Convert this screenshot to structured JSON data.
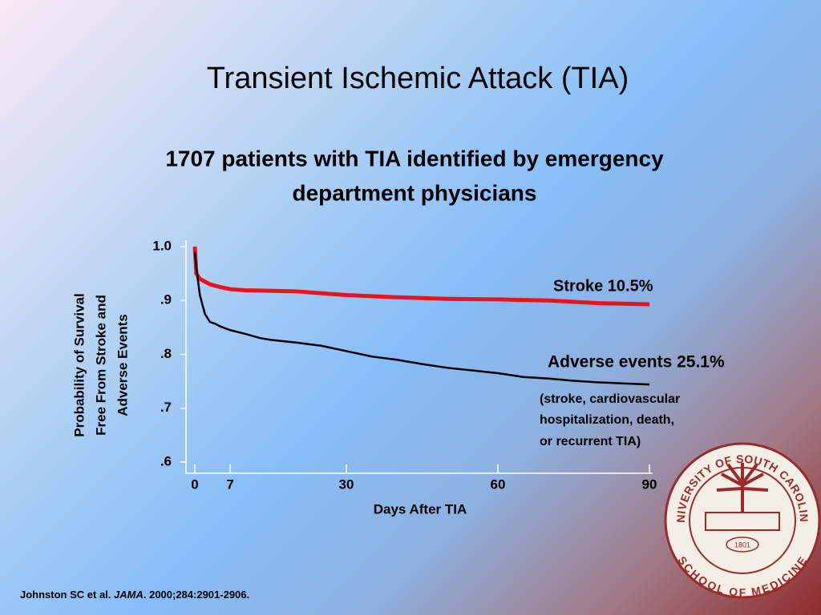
{
  "title": "Transient Ischemic Attack (TIA)",
  "chart_data": {
    "type": "line",
    "subtitle_lines": [
      "1707 patients with TIA identified by emergency",
      "department physicians"
    ],
    "ylabel_lines": [
      "Probability of Survival",
      "Free From Stroke and",
      "Adverse Events"
    ],
    "xlabel": "Days After TIA",
    "xlim": [
      0,
      90
    ],
    "xticks": [
      0,
      7,
      30,
      60,
      90
    ],
    "ylim": [
      0.6,
      1.0
    ],
    "yticks": [
      {
        "value": 1.0,
        "label": "1.0"
      },
      {
        "value": 0.9,
        "label": ".9"
      },
      {
        "value": 0.8,
        "label": ".8"
      },
      {
        "value": 0.7,
        "label": ".7"
      },
      {
        "value": 0.6,
        "label": ".6"
      }
    ],
    "series": [
      {
        "name": "Stroke 10.5%",
        "color": "#e8141b",
        "x": [
          0,
          0.3,
          1,
          2,
          3,
          5,
          7,
          10,
          15,
          20,
          30,
          40,
          50,
          60,
          70,
          80,
          90
        ],
        "values": [
          1.0,
          0.95,
          0.94,
          0.935,
          0.93,
          0.925,
          0.921,
          0.919,
          0.918,
          0.917,
          0.91,
          0.906,
          0.903,
          0.902,
          0.9,
          0.895,
          0.893
        ]
      },
      {
        "name": "Adverse events 25.1%",
        "color": "#000000",
        "x": [
          0,
          0.3,
          1,
          2,
          3,
          4,
          5,
          7,
          10,
          13,
          15,
          20,
          25,
          30,
          35,
          40,
          45,
          50,
          55,
          60,
          65,
          70,
          75,
          80,
          85,
          90
        ],
        "values": [
          0.99,
          0.96,
          0.91,
          0.875,
          0.86,
          0.857,
          0.852,
          0.845,
          0.838,
          0.83,
          0.827,
          0.822,
          0.816,
          0.806,
          0.796,
          0.79,
          0.782,
          0.775,
          0.77,
          0.765,
          0.758,
          0.755,
          0.751,
          0.748,
          0.746,
          0.744
        ]
      }
    ],
    "annotation_lines": [
      "(stroke, cardiovascular",
      "hospitalization, death,",
      "or recurrent TIA)"
    ]
  },
  "citation": [
    "Johnston SC et al. ",
    "JAMA",
    ". 2000;284:2901-2906."
  ],
  "logo": {
    "top": "UNIVERSITY OF SOUTH CAROLINA",
    "bottom": "SCHOOL OF MEDICINE",
    "year": "1801"
  }
}
